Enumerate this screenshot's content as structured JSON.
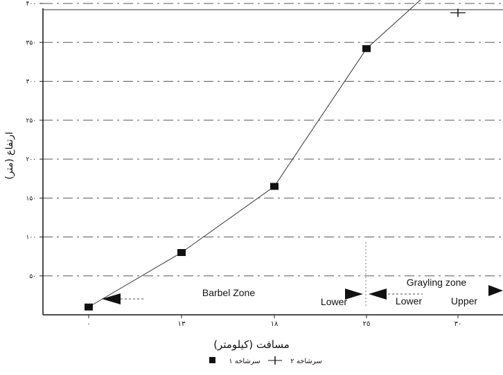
{
  "chart_data": {
    "type": "line",
    "x": [
      "٠",
      "١٣",
      "١٨",
      "٢٥",
      "٣٠"
    ],
    "series": [
      {
        "name": "سرشاخه ١",
        "marker": "filled-square",
        "values": [
          10,
          80,
          165,
          342,
          448
        ]
      },
      {
        "name": "سرشاخه ٢",
        "marker": "plus",
        "values": [
          null,
          null,
          null,
          null,
          388
        ]
      }
    ],
    "y_ticks": [
      {
        "value": 50,
        "label": "۵٠"
      },
      {
        "value": 100,
        "label": "١٠٠"
      },
      {
        "value": 150,
        "label": "١۵٠"
      },
      {
        "value": 200,
        "label": "٢٠٠"
      },
      {
        "value": 250,
        "label": "٢۵٠"
      },
      {
        "value": 300,
        "label": "٣٠٠"
      },
      {
        "value": 350,
        "label": "٣۵٠"
      },
      {
        "value": 400,
        "label": "۴٠٠"
      }
    ],
    "ylim": [
      0,
      400
    ],
    "xlabel": "مسافت (کیلومتر)",
    "ylabel": "ارتفاع (متر)",
    "grid": true,
    "legend_position": "bottom-center",
    "annotations": {
      "barbel_zone": "Barbel Zone",
      "grayling_zone": "Grayling zone",
      "lower_1": "Lower",
      "lower_2": "Lower",
      "upper": "Upper"
    },
    "colors": {
      "line": "#333333",
      "marker": "#111111",
      "grid": "#555555"
    }
  }
}
